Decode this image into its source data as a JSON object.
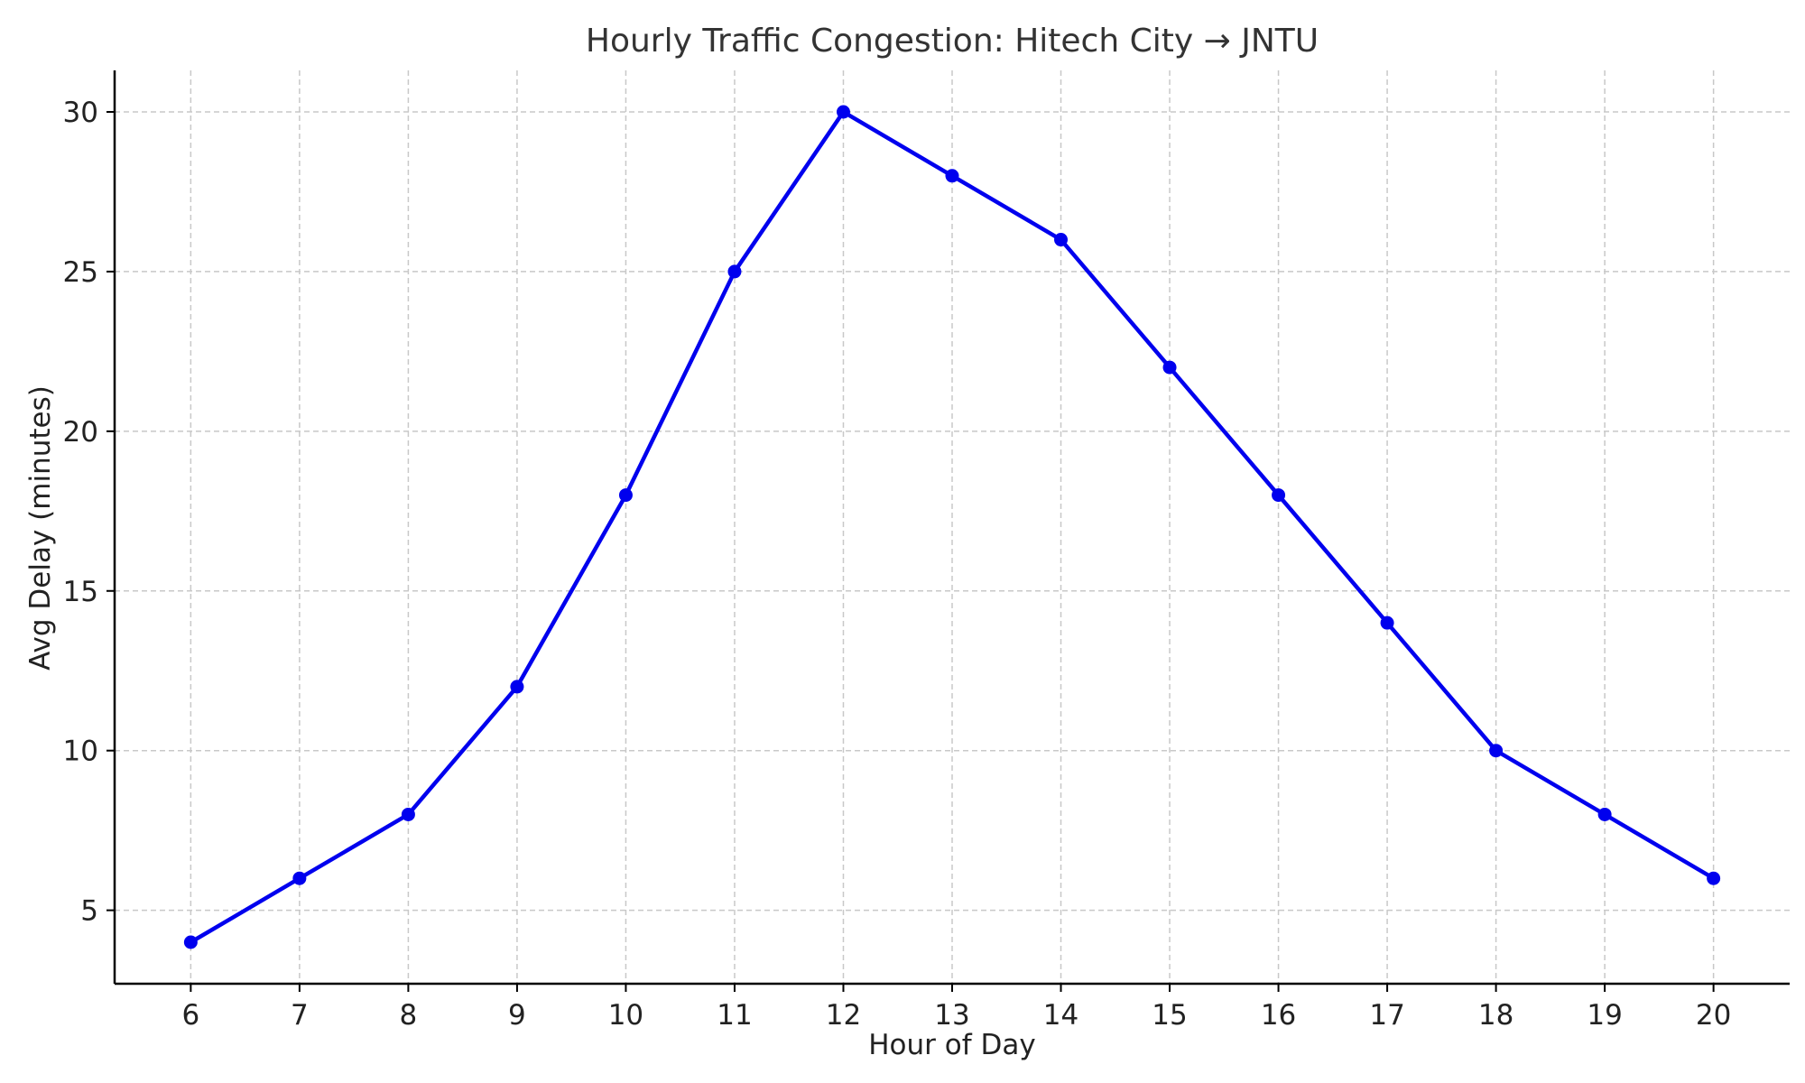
{
  "chart_data": {
    "type": "line",
    "title": "Hourly Traffic Congestion: Hitech City → JNTU",
    "xlabel": "Hour of Day",
    "ylabel": "Avg Delay (minutes)",
    "x": [
      6,
      7,
      8,
      9,
      10,
      11,
      12,
      13,
      14,
      15,
      16,
      17,
      18,
      19,
      20
    ],
    "x_ticks": [
      "6",
      "7",
      "8",
      "9",
      "10",
      "11",
      "12",
      "13",
      "14",
      "15",
      "16",
      "17",
      "18",
      "19",
      "20"
    ],
    "y_ticks": [
      "5",
      "10",
      "15",
      "20",
      "25",
      "30"
    ],
    "xlim": [
      5.3,
      20.7
    ],
    "ylim": [
      2.7,
      31.3
    ],
    "grid": true,
    "series": [
      {
        "values": [
          4,
          6,
          8,
          12,
          18,
          25,
          30,
          28,
          26,
          22,
          18,
          14,
          10,
          8,
          6
        ],
        "color": "#0000ee",
        "marker": "circle"
      }
    ]
  }
}
